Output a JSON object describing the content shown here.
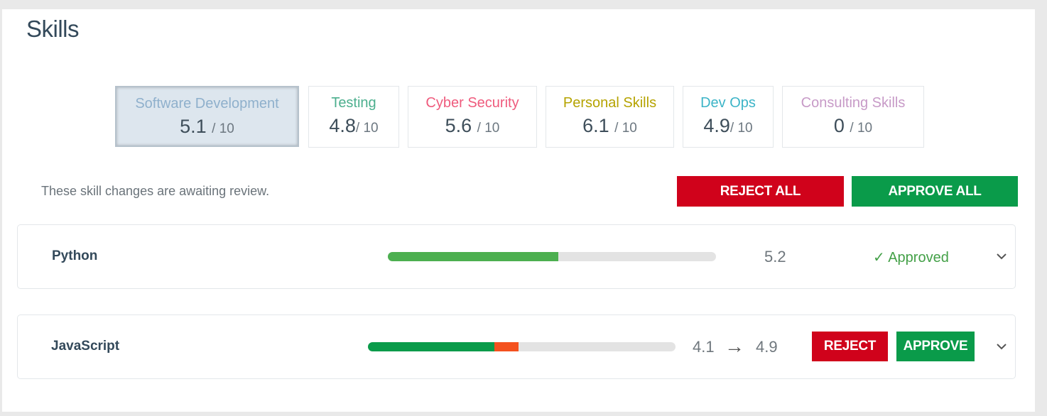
{
  "page": {
    "title": "Skills"
  },
  "categories": [
    {
      "name": "Software Development",
      "score": "5.1",
      "denominator": "/ 10",
      "color": "#8fb0cc",
      "active": true
    },
    {
      "name": "Testing",
      "score": "4.8",
      "denominator": "/ 10",
      "color": "#4caf8e"
    },
    {
      "name": "Cyber Security",
      "score": "5.6",
      "denominator": "/ 10",
      "color": "#ef5b7d"
    },
    {
      "name": "Personal Skills",
      "score": "6.1",
      "denominator": "/ 10",
      "color": "#b5a300"
    },
    {
      "name": "Dev Ops",
      "score": "4.9",
      "denominator": "/ 10",
      "color": "#3cb4c7"
    },
    {
      "name": "Consulting Skills",
      "score": "0",
      "denominator": "/ 10",
      "color": "#c79ac7"
    }
  ],
  "review": {
    "message": "These skill changes are awaiting review.",
    "reject_all_label": "REJECT ALL",
    "approve_all_label": "APPROVE ALL"
  },
  "skills": [
    {
      "name": "Python",
      "value": "5.2",
      "level_fraction": 0.52,
      "status": "Approved",
      "status_icon": "check-icon",
      "colors": {
        "fill": "#4caf50",
        "status": "#43a047"
      }
    },
    {
      "name": "JavaScript",
      "from": "4.1",
      "arrow": "→",
      "to": "4.9",
      "from_fraction": 0.41,
      "to_fraction": 0.49,
      "reject_label": "REJECT",
      "approve_label": "APPROVE",
      "colors": {
        "fill": "#0a9b4a",
        "delta": "#f4511e"
      }
    }
  ],
  "colors": {
    "reject": "#d0021b",
    "approve": "#0a9b4a",
    "track": "#e3e3e3"
  }
}
